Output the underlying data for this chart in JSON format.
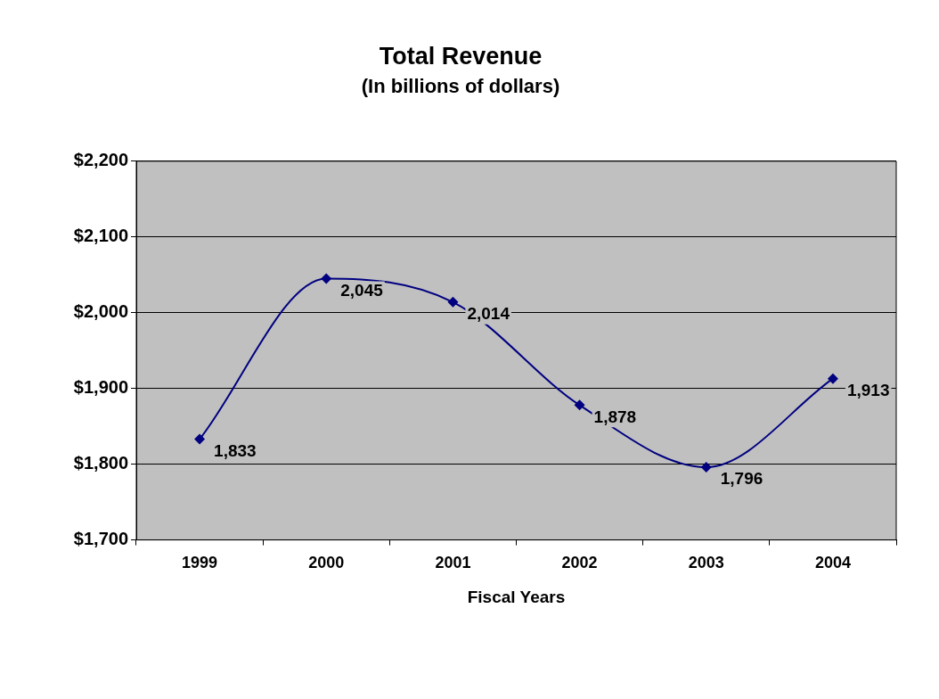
{
  "chart_data": {
    "type": "line",
    "title": "Total Revenue",
    "subtitle": "(In billions of dollars)",
    "xlabel": "Fiscal Years",
    "categories": [
      "1999",
      "2000",
      "2001",
      "2002",
      "2003",
      "2004"
    ],
    "series": [
      {
        "color": "#000080",
        "values": [
          1833,
          2045,
          2014,
          1878,
          1796,
          1913
        ],
        "value_labels": [
          "1,833",
          "2,045",
          "2,014",
          "1,878",
          "1,796",
          "1,913"
        ]
      }
    ],
    "ylim": [
      1700,
      2200
    ],
    "yticks": [
      {
        "value": 1700,
        "label": "$1,700"
      },
      {
        "value": 1800,
        "label": "$1,800"
      },
      {
        "value": 1900,
        "label": "$1,900"
      },
      {
        "value": 2000,
        "label": "$2,000"
      },
      {
        "value": 2100,
        "label": "$2,100"
      },
      {
        "value": 2200,
        "label": "$2,200"
      }
    ],
    "grid": "y",
    "legend": false,
    "marker": "diamond",
    "line_style": "solid"
  }
}
